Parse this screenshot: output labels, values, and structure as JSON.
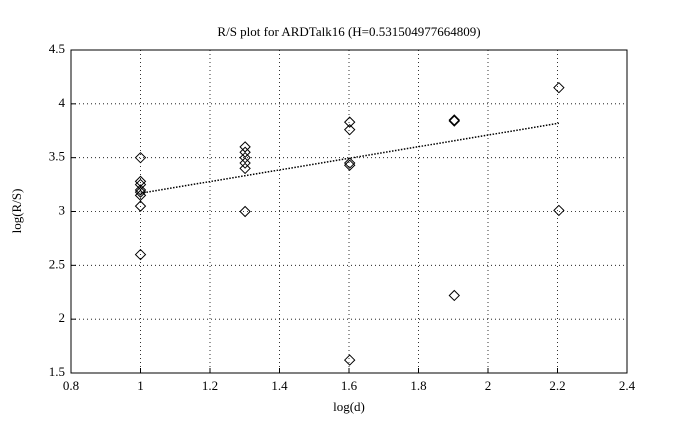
{
  "chart_data": {
    "type": "scatter",
    "title": "R/S plot for ARDTalk16 (H=0.531504977664809)",
    "x_label": "log(d)",
    "y_label": "log(R/S)",
    "x": [
      1,
      1,
      1,
      1,
      1,
      1,
      1,
      1,
      1.301,
      1.301,
      1.301,
      1.301,
      1.301,
      1.301,
      1.602,
      1.602,
      1.602,
      1.602,
      1.602,
      1.903,
      1.903,
      1.903,
      2.204,
      2.204
    ],
    "values": [
      3.5,
      3.28,
      3.25,
      3.2,
      3.18,
      3.15,
      3.05,
      2.6,
      3.6,
      3.55,
      3.5,
      3.45,
      3.4,
      3.0,
      3.83,
      3.76,
      3.45,
      3.43,
      1.62,
      3.85,
      3.84,
      2.22,
      4.15,
      3.01
    ],
    "color": "#000000",
    "fit": {
      "x": [
        1,
        2.204
      ],
      "values": [
        3.17,
        3.82
      ]
    },
    "xlim": [
      0.8,
      2.4
    ],
    "xticks": [
      0.8,
      1,
      1.2,
      1.4,
      1.6,
      1.8,
      2,
      2.2,
      2.4
    ],
    "ylim": [
      1.5,
      4.5
    ],
    "yticks": [
      1.5,
      2,
      2.5,
      3,
      3.5,
      4,
      4.5
    ],
    "grid": true
  }
}
